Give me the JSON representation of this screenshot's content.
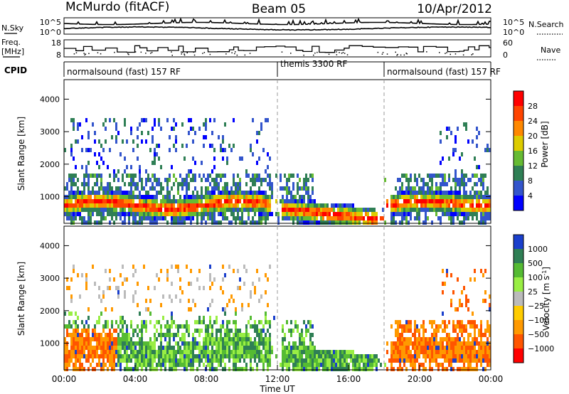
{
  "header": {
    "station": "McMurdo (fitACF)",
    "beam": "Beam 05",
    "date": "10/Apr/2012"
  },
  "noise_panel": {
    "left_label": "N.Sky",
    "right_label": "N.Search",
    "left_ticks": [
      "10^5",
      "10^0"
    ],
    "right_ticks": [
      "10^5",
      "10^0"
    ]
  },
  "freq_panel": {
    "left_label_1": "Freq.",
    "left_label_2": "[MHz]",
    "right_label": "Nave",
    "left_ticks": [
      "18",
      "8"
    ],
    "right_ticks": [
      "60",
      "0"
    ]
  },
  "cpid_panel": {
    "label": "CPID",
    "segments": [
      {
        "text": "normalsound (fast) 157 RF",
        "start_hour": 0,
        "end_hour": 12
      },
      {
        "text": "themis 3300 RF",
        "start_hour": 12,
        "end_hour": 18
      },
      {
        "text": "normalsound (fast) 157 RF",
        "start_hour": 18,
        "end_hour": 24
      }
    ]
  },
  "chart_data": [
    {
      "type": "heatmap",
      "title": "",
      "xlabel": "",
      "ylabel": "Slant Range [km]",
      "xlim": [
        0,
        24
      ],
      "ylim": [
        180,
        4600
      ],
      "yticks": [
        "1000",
        "2000",
        "3000",
        "4000"
      ],
      "colorbar": {
        "label": "Power [dB]",
        "range": [
          0,
          32
        ],
        "ticks": [
          "4",
          "8",
          "12",
          "16",
          "20",
          "24",
          "28"
        ],
        "colors": [
          "#0000ff",
          "#3355cc",
          "#2f7f55",
          "#66bb33",
          "#ddcc00",
          "#ff8800",
          "#ff4400",
          "#ff0000"
        ]
      },
      "description_series": [
        {
          "name": "",
          "x_hours": [
            0,
            2,
            4,
            6,
            8,
            10,
            12
          ],
          "y_km": [
            900,
            900,
            850,
            750,
            850,
            850,
            1000
          ]
        }
      ]
    },
    {
      "type": "heatmap",
      "title": "",
      "xlabel": "Time UT",
      "ylabel": "Slant Range [km]",
      "xlim": [
        0,
        24
      ],
      "ylim": [
        180,
        4600
      ],
      "xticks": [
        "00:00",
        "04:00",
        "08:00",
        "12:00",
        "16:00",
        "20:00",
        "00:00"
      ],
      "yticks": [
        "1000",
        "2000",
        "3000",
        "4000"
      ],
      "colorbar": {
        "label": "Velocity [m s^-1]",
        "ticks": [
          "1000",
          "500",
          "100",
          "25",
          "−25",
          "−100",
          "−500",
          "−1000"
        ],
        "colors": [
          "#1a3fcc",
          "#2f7f55",
          "#55bb33",
          "#99ee44",
          "#bbbbbb",
          "#ffcc00",
          "#ff9900",
          "#ff5500",
          "#ff0000"
        ]
      }
    }
  ]
}
